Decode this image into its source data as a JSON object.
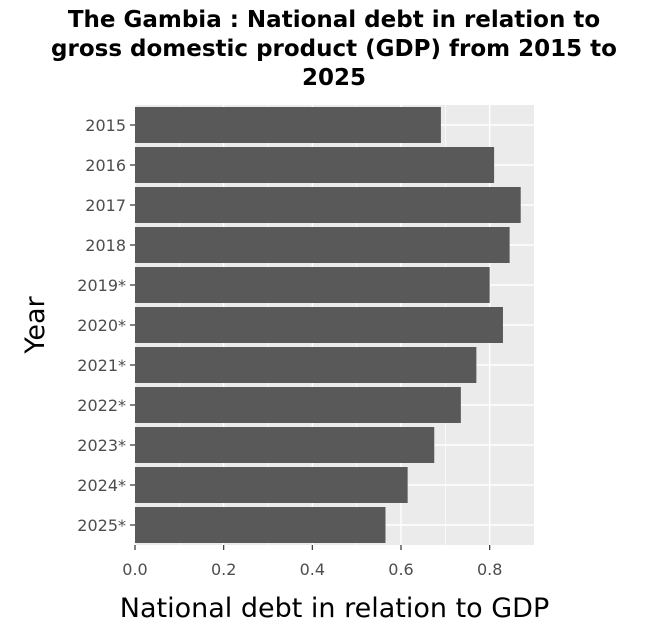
{
  "chart_data": {
    "type": "bar",
    "orientation": "horizontal",
    "title_lines": [
      "The Gambia : National debt in relation to",
      "gross domestic product (GDP) from 2015 to",
      "2025"
    ],
    "xlabel": "National debt in relation to GDP",
    "ylabel": "Year",
    "categories": [
      "2015",
      "2016",
      "2017",
      "2018",
      "2019*",
      "2020*",
      "2021*",
      "2022*",
      "2023*",
      "2024*",
      "2025*"
    ],
    "values": [
      0.69,
      0.81,
      0.87,
      0.845,
      0.8,
      0.83,
      0.77,
      0.735,
      0.675,
      0.615,
      0.565
    ],
    "xlim": [
      0,
      0.9
    ],
    "xticks": [
      0.0,
      0.2,
      0.4,
      0.6,
      0.8
    ],
    "xtick_labels": [
      "0.0",
      "0.2",
      "0.4",
      "0.6",
      "0.8"
    ],
    "grid": true,
    "colors": {
      "bar": "#595959",
      "panel": "#ebebeb",
      "grid": "#ffffff"
    }
  }
}
